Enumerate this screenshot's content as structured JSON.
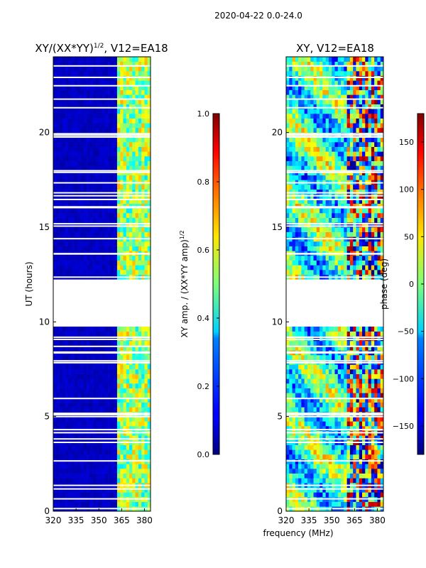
{
  "figure_title": "2020-04-22 0.0-24.0",
  "shared_xlabel": "frequency (MHz)",
  "chart_data": [
    {
      "type": "heatmap",
      "title": "XY/(XX*YY)^1/2, V12=EA18",
      "title_main": "XY/(XX*YY)",
      "title_sup": "1/2",
      "title_tail": ", V12=EA18",
      "ylabel": "UT (hours)",
      "xlabel": "frequency (MHz)",
      "xlim": [
        320,
        384
      ],
      "ylim": [
        0,
        24
      ],
      "xticks": [
        "320",
        "335",
        "350",
        "365",
        "380"
      ],
      "xtick_values": [
        320,
        335,
        350,
        365,
        380
      ],
      "yticks": [
        "0",
        "5",
        "10",
        "15",
        "20"
      ],
      "ytick_values": [
        0,
        5,
        10,
        15,
        20
      ],
      "colorbar": {
        "label": "XY amp. / (XX*YY amp)^1/2",
        "label_main": "XY amp. / (XX*YY amp)",
        "label_sup": "1/2",
        "range": [
          0.0,
          1.0
        ],
        "ticks": [
          "0.0",
          "0.2",
          "0.4",
          "0.6",
          "0.8",
          "1.0"
        ],
        "tick_values": [
          0.0,
          0.2,
          0.4,
          0.6,
          0.8,
          1.0
        ]
      },
      "data_gaps_hours": [
        [
          9.8,
          12.3
        ]
      ],
      "notes": "low amplitude (~0.05) below 362 MHz, higher (~0.5) between 362 and 384 MHz"
    },
    {
      "type": "heatmap",
      "title": "XY, V12=EA18",
      "xlabel": "frequency (MHz)",
      "xlim": [
        320,
        384
      ],
      "ylim": [
        0,
        24
      ],
      "xticks": [
        "320",
        "335",
        "350",
        "365",
        "380"
      ],
      "xtick_values": [
        320,
        335,
        350,
        365,
        380
      ],
      "yticks": [
        "0",
        "5",
        "10",
        "15",
        "20"
      ],
      "ytick_values": [
        0,
        5,
        10,
        15,
        20
      ],
      "colorbar": {
        "label": "phase (deg)",
        "range": [
          -180,
          180
        ],
        "ticks": [
          "−150",
          "−100",
          "−50",
          "0",
          "50",
          "100",
          "150"
        ],
        "tick_values": [
          -150,
          -100,
          -50,
          0,
          50,
          100,
          150
        ]
      },
      "data_gaps_hours": [
        [
          9.8,
          12.3
        ]
      ]
    }
  ]
}
